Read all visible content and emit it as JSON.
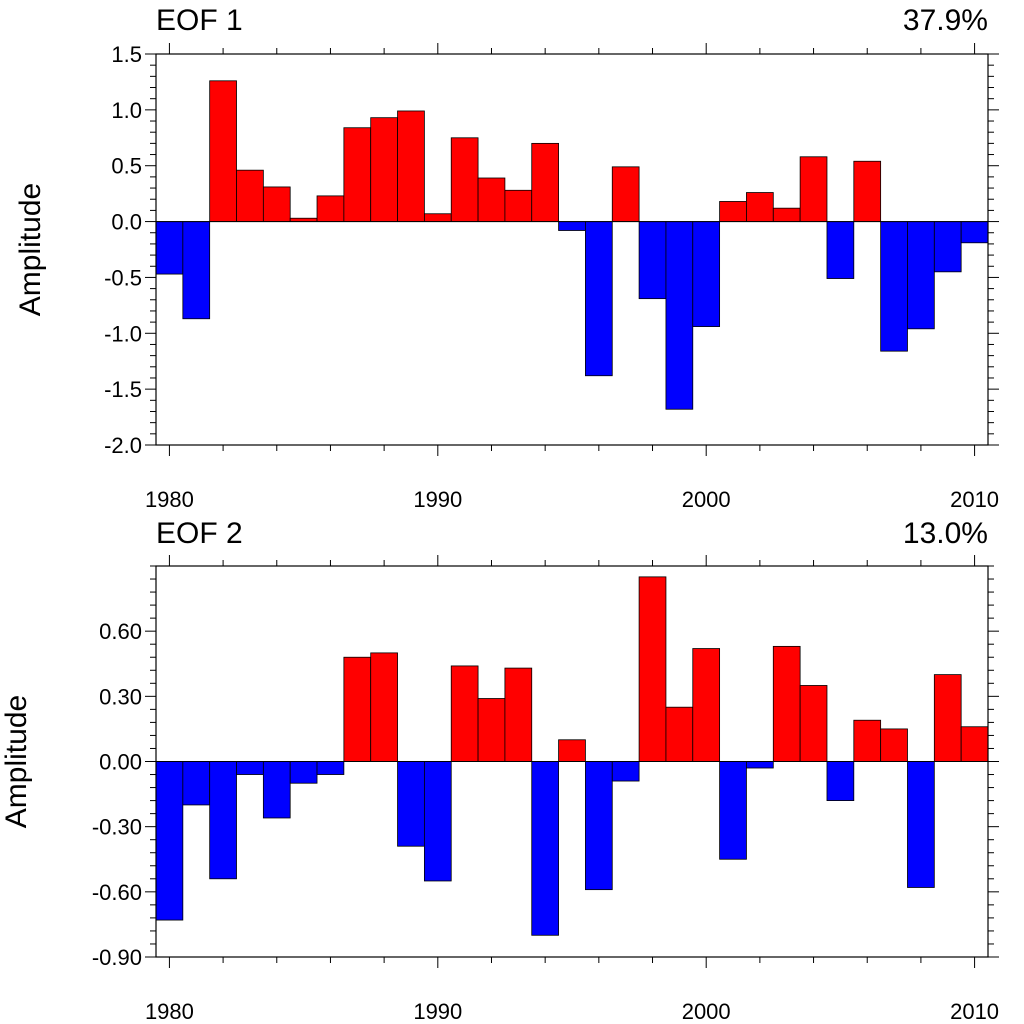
{
  "chart_data": [
    {
      "type": "bar",
      "title": "EOF 1",
      "variance_label": "37.9%",
      "ylabel": "Amplitude",
      "xlabel": "",
      "ylim": [
        -2.0,
        1.5
      ],
      "xlim": [
        1979.5,
        2010.5
      ],
      "ytick_values": [
        -2.0,
        -1.5,
        -1.0,
        -0.5,
        0.0,
        0.5,
        1.0,
        1.5
      ],
      "ytick_labels": [
        "-2.0",
        "-1.5",
        "-1.0",
        "-0.5",
        "0.0",
        "0.5",
        "1.0",
        "1.5"
      ],
      "xtick_values": [
        1980,
        1990,
        2000,
        2010
      ],
      "xtick_labels": [
        "1980",
        "1990",
        "2000",
        "2010"
      ],
      "positive_color": "#ff0000",
      "negative_color": "#0000ff",
      "grid": false,
      "x": [
        1980,
        1981,
        1982,
        1983,
        1984,
        1985,
        1986,
        1987,
        1988,
        1989,
        1990,
        1991,
        1992,
        1993,
        1994,
        1995,
        1996,
        1997,
        1998,
        1999,
        2000,
        2001,
        2002,
        2003,
        2004,
        2005,
        2006,
        2007,
        2008,
        2009,
        2010
      ],
      "values": [
        -0.47,
        -0.87,
        1.26,
        0.46,
        0.31,
        0.03,
        0.23,
        0.84,
        0.93,
        0.99,
        0.07,
        0.75,
        0.39,
        0.28,
        0.7,
        -0.08,
        -1.38,
        0.49,
        -0.69,
        -1.68,
        -0.94,
        0.18,
        0.26,
        0.12,
        0.58,
        -0.51,
        0.54,
        -1.16,
        -0.96,
        -0.45,
        -0.19
      ]
    },
    {
      "type": "bar",
      "title": "EOF 2",
      "variance_label": "13.0%",
      "ylabel": "Amplitude",
      "xlabel": "",
      "ylim": [
        -0.9,
        0.9
      ],
      "xlim": [
        1979.5,
        2010.5
      ],
      "ytick_values": [
        -0.9,
        -0.6,
        -0.3,
        0.0,
        0.3,
        0.6
      ],
      "ytick_labels": [
        "-0.90",
        "-0.60",
        "-0.30",
        "0.00",
        "0.30",
        "0.60"
      ],
      "xtick_values": [
        1980,
        1990,
        2000,
        2010
      ],
      "xtick_labels": [
        "1980",
        "1990",
        "2000",
        "2010"
      ],
      "positive_color": "#ff0000",
      "negative_color": "#0000ff",
      "grid": false,
      "x": [
        1980,
        1981,
        1982,
        1983,
        1984,
        1985,
        1986,
        1987,
        1988,
        1989,
        1990,
        1991,
        1992,
        1993,
        1994,
        1995,
        1996,
        1997,
        1998,
        1999,
        2000,
        2001,
        2002,
        2003,
        2004,
        2005,
        2006,
        2007,
        2008,
        2009,
        2010
      ],
      "values": [
        -0.73,
        -0.2,
        -0.54,
        -0.06,
        -0.26,
        -0.1,
        -0.06,
        0.48,
        0.5,
        -0.39,
        -0.55,
        0.44,
        0.29,
        0.43,
        -0.8,
        0.1,
        -0.59,
        -0.09,
        0.85,
        0.25,
        0.52,
        -0.45,
        -0.03,
        0.53,
        0.35,
        -0.18,
        0.19,
        0.15,
        -0.58,
        0.4,
        0.16
      ]
    }
  ]
}
